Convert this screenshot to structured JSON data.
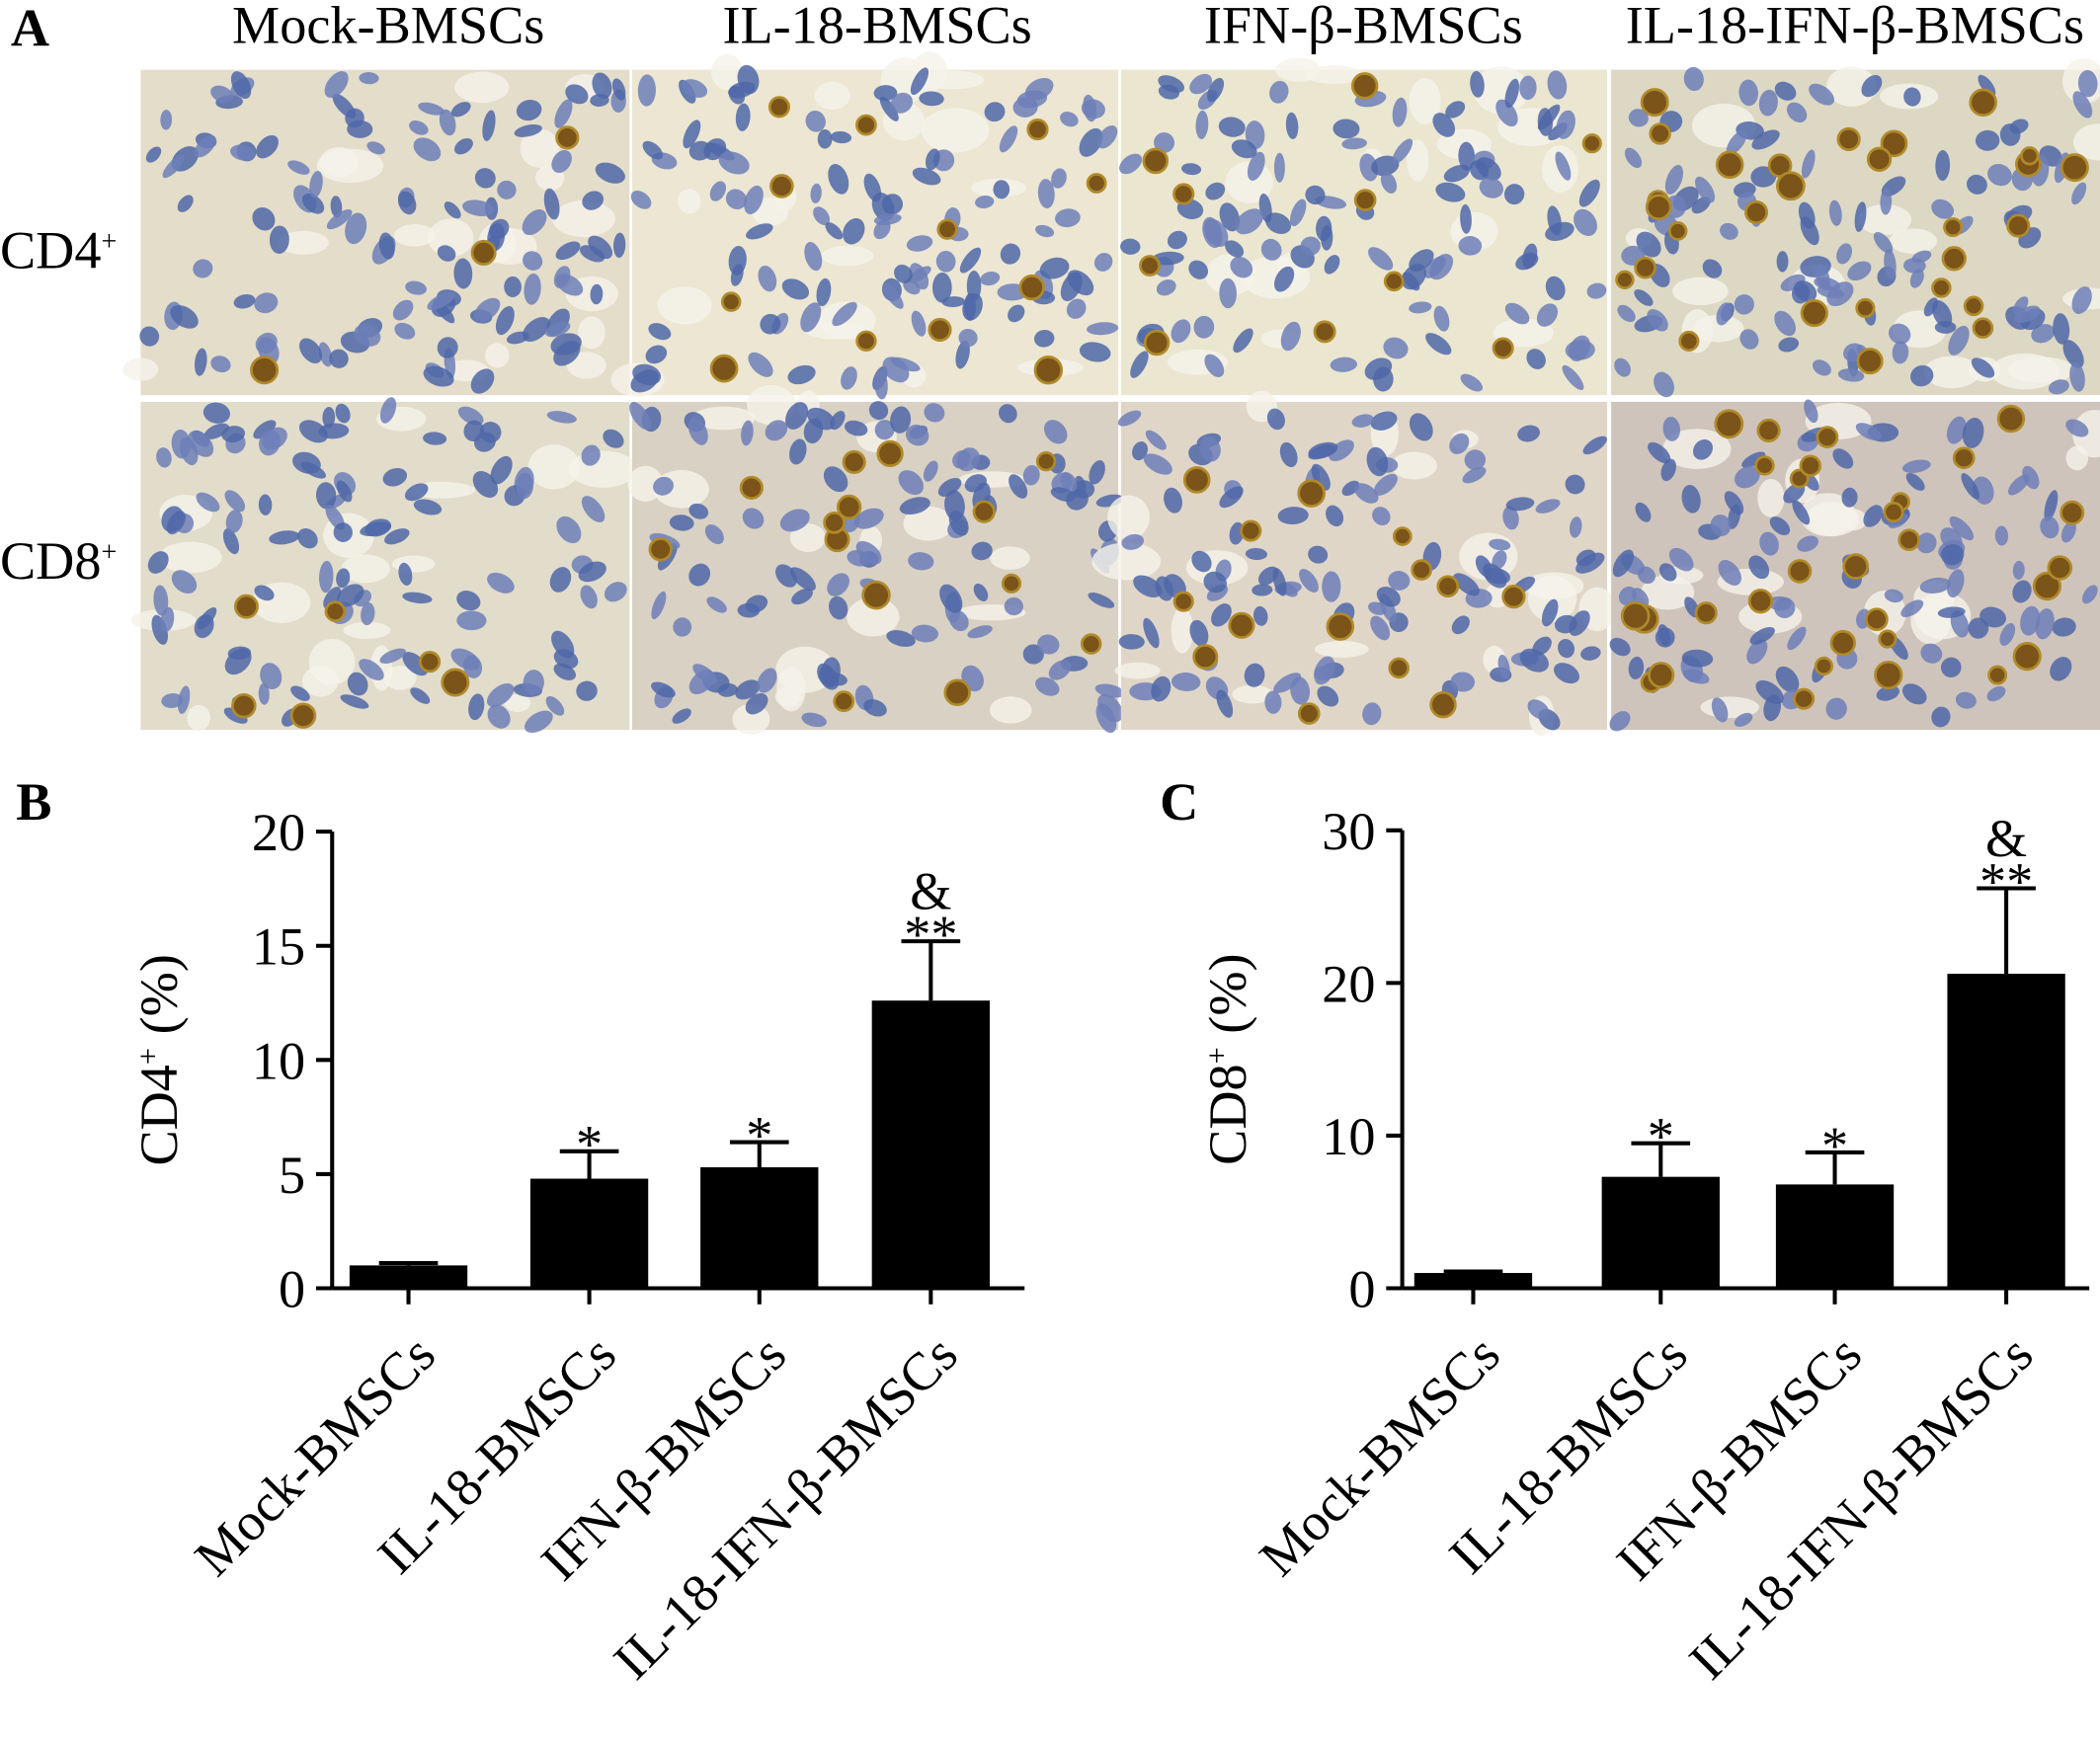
{
  "panel_a": {
    "label": "A",
    "columns": [
      "Mock-BMSCs",
      "IL-18-BMSCs",
      "IFN-β-BMSCs",
      "IL-18-IFN-β-BMSCs"
    ],
    "rows": [
      {
        "text": "CD4",
        "sup": "+"
      },
      {
        "text": "CD8",
        "sup": "+"
      }
    ]
  },
  "chart_data": [
    {
      "type": "bar",
      "panel_label": "B",
      "y_label": {
        "text": "CD4",
        "sup": "+",
        "suffix": " (%)"
      },
      "categories": [
        "Mock-BMSCs",
        "IL-18-BMSCs",
        "IFN-β-BMSCs",
        "IL-18-IFN-β-BMSCs"
      ],
      "values": [
        1.0,
        4.8,
        5.3,
        12.6
      ],
      "errors": [
        0.1,
        1.2,
        1.1,
        2.6
      ],
      "significance": [
        null,
        "*",
        "*",
        "**"
      ],
      "significance_2": [
        null,
        null,
        null,
        "&"
      ],
      "color": "#000000",
      "ylim": [
        0,
        20
      ],
      "yticks": [
        0,
        5,
        10,
        15,
        20
      ]
    },
    {
      "type": "bar",
      "panel_label": "C",
      "y_label": {
        "text": "CD8",
        "sup": "+",
        "suffix": " (%)"
      },
      "categories": [
        "Mock-BMSCs",
        "IL-18-BMSCs",
        "IFN-β-BMSCs",
        "IL-18-IFN-β-BMSCs"
      ],
      "values": [
        1.0,
        7.3,
        6.8,
        20.6
      ],
      "errors": [
        0.1,
        2.2,
        2.1,
        5.6
      ],
      "significance": [
        null,
        "*",
        "*",
        "**"
      ],
      "significance_2": [
        null,
        null,
        null,
        "&"
      ],
      "color": "#000000",
      "ylim": [
        0,
        30
      ],
      "yticks": [
        0,
        10,
        20,
        30
      ]
    }
  ]
}
